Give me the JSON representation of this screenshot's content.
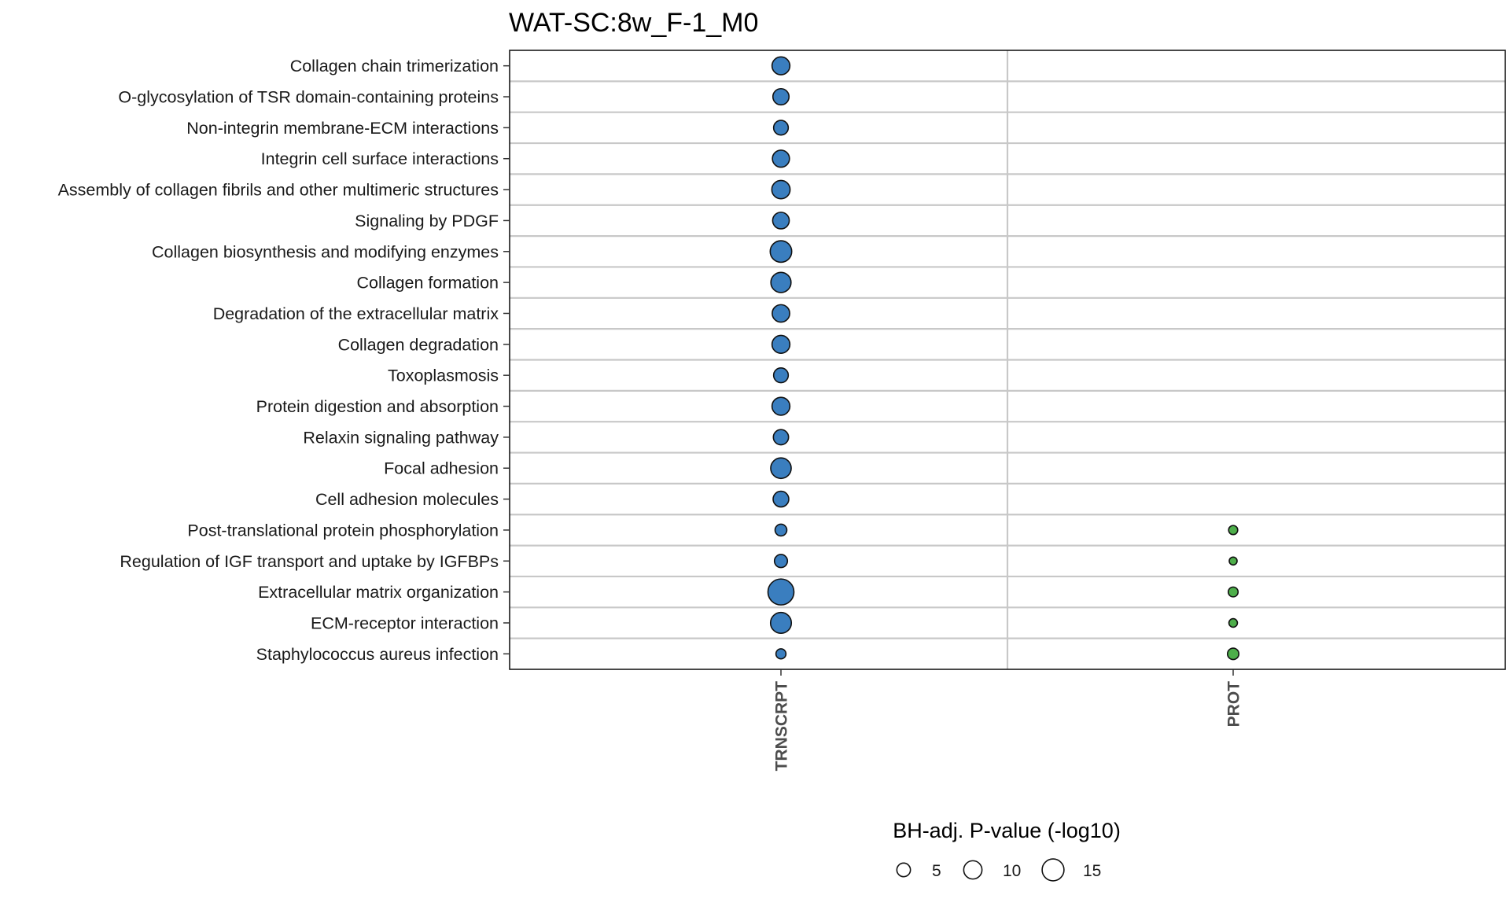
{
  "chart_data": {
    "type": "scatter",
    "title": "WAT-SC:8w_F-1_M0",
    "categories": [
      "Collagen chain trimerization",
      "O-glycosylation of TSR domain-containing proteins",
      "Non-integrin membrane-ECM interactions",
      "Integrin cell surface interactions",
      "Assembly of collagen fibrils and other multimeric structures",
      "Signaling by PDGF",
      "Collagen biosynthesis and modifying enzymes",
      "Collagen formation",
      "Degradation of the extracellular matrix",
      "Collagen degradation",
      "Toxoplasmosis",
      "Protein digestion and absorption",
      "Relaxin signaling pathway",
      "Focal adhesion",
      "Cell adhesion molecules",
      "Post-translational protein phosphorylation",
      "Regulation of IGF transport and uptake by IGFBPs",
      "Extracellular matrix organization",
      "ECM-receptor interaction",
      "Staphylococcus aureus infection"
    ],
    "x": [
      "TRNSCRPT",
      "PROT"
    ],
    "series": [
      {
        "name": "TRNSCRPT",
        "color": "#3a7ebf",
        "values": [
          9.5,
          7.5,
          6,
          8.5,
          10,
          8,
          14.5,
          12.5,
          9,
          9.5,
          6,
          9.5,
          6.5,
          13,
          7,
          3.5,
          4.5,
          22,
          13.5,
          2.3
        ]
      },
      {
        "name": "PROT",
        "color": "#4dae4a",
        "values": [
          null,
          null,
          null,
          null,
          null,
          null,
          null,
          null,
          null,
          null,
          null,
          null,
          null,
          null,
          null,
          1.8,
          1.2,
          2.2,
          1.5,
          3.2
        ]
      }
    ],
    "legend": {
      "title": "BH-adj. P-value (-log10)",
      "breaks": [
        5,
        10,
        15
      ],
      "position": "bottom"
    },
    "grid": true
  }
}
